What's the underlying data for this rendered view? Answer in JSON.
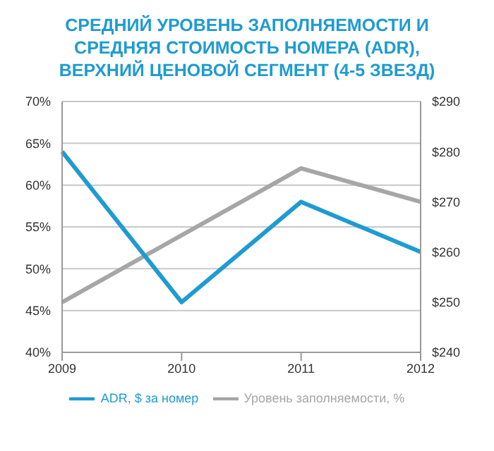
{
  "chart_data": {
    "type": "line",
    "title": "СРЕДНИЙ УРОВЕНЬ ЗАПОЛНЯЕМОСТИ И СРЕДНЯЯ СТОИМОСТЬ НОМЕРА (ADR), ВЕРХНИЙ ЦЕНОВОЙ СЕГМЕНТ (4-5 ЗВЕЗД)",
    "categories": [
      "2009",
      "2010",
      "2011",
      "2012"
    ],
    "series": [
      {
        "name": "Уровень заполняемости, %",
        "color": "#a6a6a6",
        "values": [
          46,
          54,
          62,
          58
        ]
      },
      {
        "name": "ADR, $ за номер",
        "color": "#1f9bd1",
        "values": [
          280,
          250,
          270,
          260
        ],
        "axis": "y2"
      }
    ],
    "ylim": [
      40,
      70
    ],
    "yticks": [
      {
        "value": 40,
        "label": "40%"
      },
      {
        "value": 45,
        "label": "45%"
      },
      {
        "value": 50,
        "label": "50%"
      },
      {
        "value": 55,
        "label": "55%"
      },
      {
        "value": 60,
        "label": "60%"
      },
      {
        "value": 65,
        "label": "65%"
      },
      {
        "value": 70,
        "label": "70%"
      }
    ],
    "y2lim": [
      240,
      290
    ],
    "y2ticks": [
      {
        "value": 240,
        "label": "$240"
      },
      {
        "value": 250,
        "label": "$250"
      },
      {
        "value": 260,
        "label": "$260"
      },
      {
        "value": 270,
        "label": "$270"
      },
      {
        "value": 280,
        "label": "$280"
      },
      {
        "value": 290,
        "label": "$290"
      }
    ],
    "grid": "y",
    "legend": "bottom",
    "marker": "none",
    "line_style": "solid"
  }
}
